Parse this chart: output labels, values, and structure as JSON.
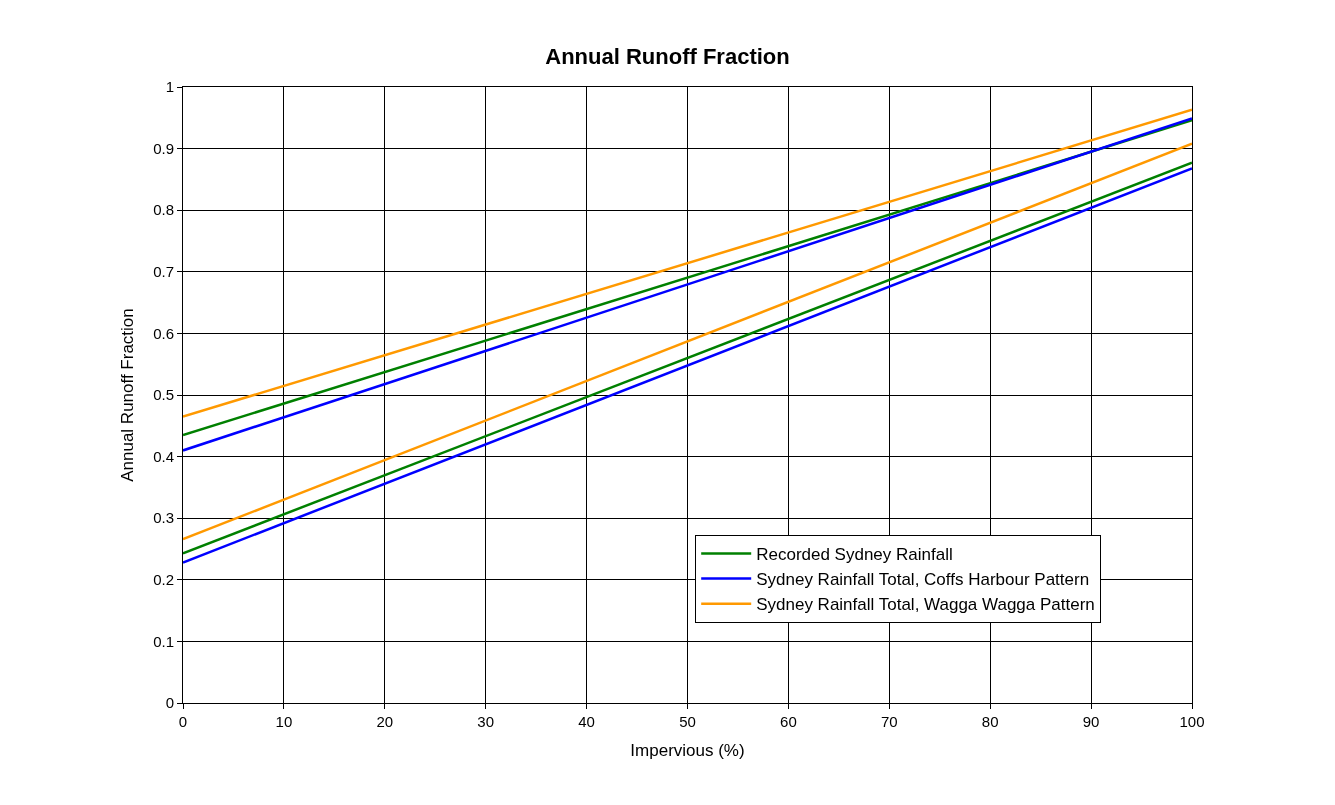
{
  "chart_data": {
    "type": "line",
    "title": "Annual Runoff Fraction",
    "xlabel": "Impervious (%)",
    "ylabel": "Annual Runoff Fraction",
    "x": [
      0,
      100
    ],
    "series": [
      {
        "name": "Recorded Sydney Rainfall",
        "color": "#008000",
        "values": [
          0.435,
          0.946
        ]
      },
      {
        "name": "Sydney Rainfall Total, Coffs Harbour Pattern",
        "color": "#0000ff",
        "values": [
          0.41,
          0.949
        ]
      },
      {
        "name": "Sydney Rainfall Total, Wagga Wagga Pattern",
        "color": "#ff9900",
        "values": [
          0.465,
          0.963
        ]
      },
      {
        "color": "#008000",
        "values": [
          0.243,
          0.877
        ]
      },
      {
        "color": "#0000ff",
        "values": [
          0.228,
          0.868
        ]
      },
      {
        "color": "#ff9900",
        "values": [
          0.266,
          0.908
        ]
      }
    ],
    "xlim": [
      0,
      100
    ],
    "xticks": [
      0,
      10,
      20,
      30,
      40,
      50,
      60,
      70,
      80,
      90,
      100
    ],
    "ylim": [
      0,
      1
    ],
    "yticks": [
      0,
      0.1,
      0.2,
      0.3,
      0.4,
      0.5,
      0.6,
      0.7,
      0.8,
      0.9,
      1
    ],
    "grid": true,
    "legend": "bottom right",
    "marker": "none",
    "line_style": "solid"
  }
}
